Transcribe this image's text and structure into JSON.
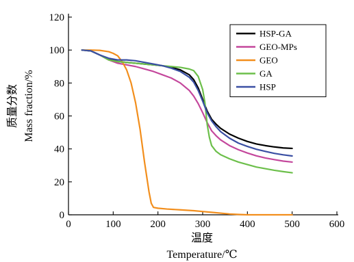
{
  "chart_data": {
    "type": "line",
    "xlabel_cn": "温度",
    "xlabel_en": "Temperature/℃",
    "ylabel_cn": "质量分数",
    "ylabel_en": "Mass fraction/%",
    "xlim": [
      0,
      600
    ],
    "ylim": [
      0,
      120
    ],
    "xticks": [
      0,
      100,
      200,
      300,
      400,
      500,
      600
    ],
    "yticks": [
      0,
      20,
      40,
      60,
      80,
      100,
      120
    ],
    "grid": false,
    "legend_position": "top-right",
    "series": [
      {
        "name": "HSP-GA",
        "color": "#000000",
        "x": [
          30,
          50,
          70,
          90,
          110,
          130,
          150,
          170,
          190,
          210,
          230,
          250,
          270,
          280,
          290,
          300,
          310,
          320,
          330,
          340,
          360,
          380,
          400,
          420,
          440,
          460,
          480,
          500
        ],
        "y": [
          100,
          99.5,
          97,
          94.5,
          93,
          92.5,
          92,
          91.5,
          91,
          90.5,
          89.5,
          88,
          85,
          82,
          77,
          70,
          63,
          58,
          55,
          52.5,
          49,
          46.5,
          44.5,
          43,
          42,
          41.2,
          40.6,
          40.3
        ]
      },
      {
        "name": "GEO-MPs",
        "color": "#c4479c",
        "x": [
          30,
          50,
          70,
          90,
          110,
          130,
          150,
          170,
          190,
          210,
          230,
          250,
          270,
          280,
          290,
          300,
          310,
          320,
          330,
          340,
          360,
          380,
          400,
          420,
          440,
          460,
          480,
          500
        ],
        "y": [
          100,
          99.5,
          97,
          94,
          92,
          91,
          90,
          88.5,
          87,
          85,
          83,
          80,
          75.5,
          72,
          67.5,
          62,
          56,
          51,
          48,
          45.5,
          42,
          39.5,
          37.5,
          35.8,
          34.5,
          33.5,
          32.6,
          32
        ]
      },
      {
        "name": "GEO",
        "color": "#f28e1c",
        "x": [
          30,
          50,
          70,
          90,
          100,
          110,
          120,
          130,
          140,
          150,
          160,
          170,
          180,
          185,
          190,
          200,
          220,
          250,
          280,
          300,
          320,
          340,
          360,
          380,
          400,
          450,
          500
        ],
        "y": [
          100,
          100,
          99.8,
          99,
          98,
          96.5,
          93,
          88,
          80,
          68,
          52,
          32,
          14,
          7,
          4.5,
          4,
          3.5,
          3,
          2.5,
          2,
          1.5,
          1,
          0.5,
          0.2,
          0,
          0,
          0
        ]
      },
      {
        "name": "GA",
        "color": "#6cbf4a",
        "x": [
          30,
          50,
          70,
          90,
          110,
          130,
          150,
          170,
          190,
          210,
          230,
          250,
          270,
          280,
          290,
          300,
          305,
          310,
          315,
          320,
          330,
          340,
          360,
          380,
          400,
          420,
          440,
          460,
          480,
          500
        ],
        "y": [
          100,
          99.5,
          97,
          94,
          93,
          92.5,
          92,
          91.5,
          91,
          90.5,
          90,
          89.5,
          88.5,
          87.5,
          84,
          76,
          68,
          55,
          47,
          42,
          38.5,
          36.5,
          34,
          32,
          30.5,
          29,
          28,
          27,
          26.2,
          25.5
        ]
      },
      {
        "name": "HSP",
        "color": "#3a4fa3",
        "x": [
          30,
          50,
          70,
          90,
          110,
          130,
          150,
          170,
          190,
          210,
          230,
          250,
          270,
          280,
          290,
          300,
          310,
          320,
          330,
          340,
          360,
          380,
          400,
          420,
          440,
          460,
          480,
          500
        ],
        "y": [
          100,
          99.5,
          97,
          95,
          94,
          94,
          93.5,
          92.5,
          91.5,
          90.5,
          89,
          87,
          83.5,
          80.5,
          75.5,
          69,
          62,
          57,
          53.5,
          50.5,
          46.5,
          43.5,
          41.5,
          39.8,
          38.5,
          37.3,
          36.4,
          35.7
        ]
      }
    ]
  }
}
